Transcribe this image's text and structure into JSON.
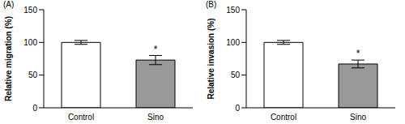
{
  "chart_data": [
    {
      "type": "bar",
      "title": "(A)",
      "ylabel": "Relative migration (%)",
      "categories": [
        "Control",
        "Sino"
      ],
      "values": [
        100,
        73
      ],
      "error": [
        3,
        7
      ],
      "significance": [
        null,
        "*"
      ],
      "colors": [
        "#ffffff",
        "#999999"
      ],
      "ylim": [
        0,
        150
      ],
      "yticks": [
        0,
        50,
        100,
        150
      ],
      "grid": false
    },
    {
      "type": "bar",
      "title": "(B)",
      "ylabel": "Relative invasion (%)",
      "categories": [
        "Control",
        "Sino"
      ],
      "values": [
        100,
        67
      ],
      "error": [
        3,
        6
      ],
      "significance": [
        null,
        "*"
      ],
      "colors": [
        "#ffffff",
        "#999999"
      ],
      "ylim": [
        0,
        150
      ],
      "yticks": [
        0,
        50,
        100,
        150
      ],
      "grid": false
    }
  ]
}
